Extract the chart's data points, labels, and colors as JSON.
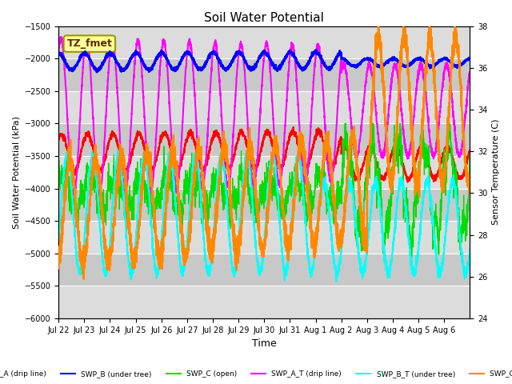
{
  "title": "Soil Water Potential",
  "xlabel": "Time",
  "ylabel_left": "Soil Water Potential (kPa)",
  "ylabel_right": "Sensor Temperature (C)",
  "annotation_text": "TZ_fmet",
  "annotation_box_color": "#FFFF99",
  "annotation_border_color": "#999900",
  "ylim_left": [
    -6000,
    -1500
  ],
  "ylim_right": [
    24,
    38
  ],
  "yticks_left": [
    -6000,
    -5500,
    -5000,
    -4500,
    -4000,
    -3500,
    -3000,
    -2500,
    -2000,
    -1500
  ],
  "yticks_right": [
    24,
    26,
    28,
    30,
    32,
    34,
    36,
    38
  ],
  "x_tick_labels": [
    "Jul 22",
    "Jul 23",
    "Jul 24",
    "Jul 25",
    "Jul 26",
    "Jul 27",
    "Jul 28",
    "Jul 29",
    "Jul 30",
    "Jul 31",
    "Aug 1",
    "Aug 2",
    "Aug 3",
    "Aug 4",
    "Aug 5",
    "Aug 6"
  ],
  "series": [
    {
      "name": "SWP_A (drip line)",
      "color": "#FF0000",
      "lw": 1.5
    },
    {
      "name": "SWP_B (under tree)",
      "color": "#0000FF",
      "lw": 1.8
    },
    {
      "name": "SWP_C (open)",
      "color": "#00DD00",
      "lw": 0.9
    },
    {
      "name": "SWP_A_T (drip line)",
      "color": "#FF00FF",
      "lw": 1.5
    },
    {
      "name": "SWP_B_T (under tree)",
      "color": "#00FFFF",
      "lw": 1.5
    },
    {
      "name": "SWP_C_T (open)",
      "color": "#FF8800",
      "lw": 1.8
    }
  ],
  "band_colors": [
    "#DCDCDC",
    "#C8C8C8"
  ],
  "grid_line_color": "#FFFFFF",
  "fig_bg": "#FFFFFF"
}
